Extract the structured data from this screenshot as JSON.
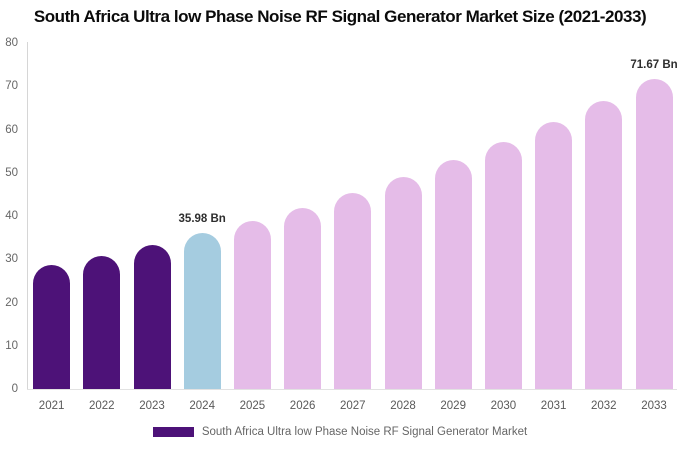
{
  "title": "South Africa Ultra low Phase Noise RF Signal Generator Market Size (2021-2033)",
  "legend": {
    "label": "South Africa Ultra low Phase Noise RF Signal Generator Market",
    "swatch_color": "#4d1278"
  },
  "colors": {
    "historical_bar": "#4d1278",
    "base_year_bar": "#a5cce0",
    "forecast_bar": "#e5bce8",
    "axis_line": "#d6d6d6",
    "tick_text": "#666666",
    "data_label_text": "#2e2e2e"
  },
  "chart_data": {
    "type": "bar",
    "title": "South Africa Ultra low Phase Noise RF Signal Generator Market Size (2021-2033)",
    "xlabel": "",
    "ylabel": "",
    "ylim": [
      0,
      80
    ],
    "yticks": [
      0,
      10,
      20,
      30,
      40,
      50,
      60,
      70,
      80
    ],
    "grid": false,
    "legend_position": "bottom",
    "unit": "Bn",
    "categories": [
      "2021",
      "2022",
      "2023",
      "2024",
      "2025",
      "2026",
      "2027",
      "2028",
      "2029",
      "2030",
      "2031",
      "2032",
      "2033"
    ],
    "values": [
      28.57,
      30.85,
      33.32,
      35.98,
      38.85,
      41.96,
      45.31,
      48.93,
      52.85,
      57.07,
      61.64,
      66.57,
      71.67
    ],
    "bar_colors": [
      "#4d1278",
      "#4d1278",
      "#4d1278",
      "#a5cce0",
      "#e5bce8",
      "#e5bce8",
      "#e5bce8",
      "#e5bce8",
      "#e5bce8",
      "#e5bce8",
      "#e5bce8",
      "#e5bce8",
      "#e5bce8"
    ],
    "annotations": [
      {
        "category": "2024",
        "text": "35.98 Bn"
      },
      {
        "category": "2033",
        "text": "71.67 Bn"
      }
    ]
  }
}
